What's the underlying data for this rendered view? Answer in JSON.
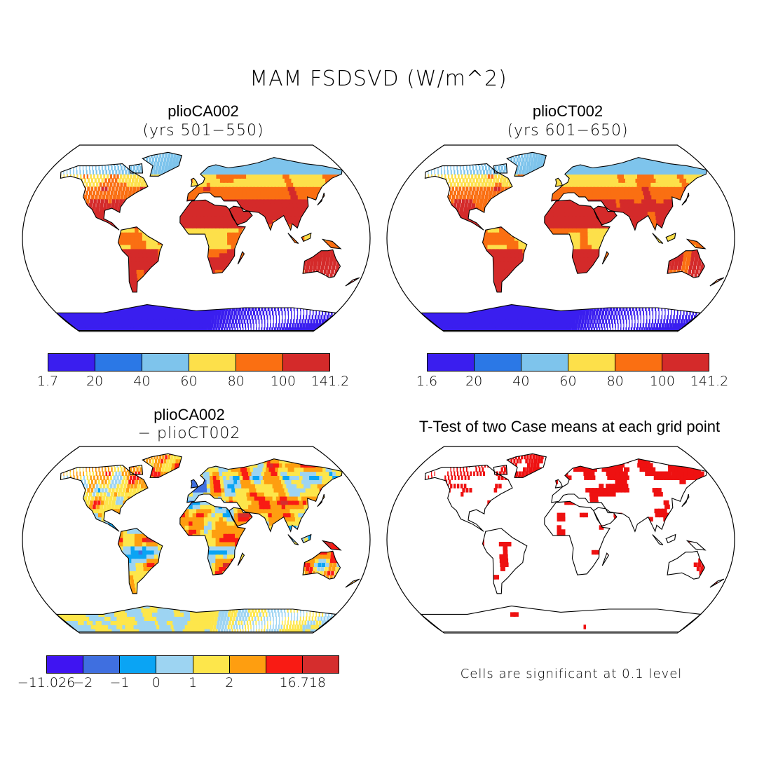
{
  "figure": {
    "title": "MAM FSDSVD (W/m^2)"
  },
  "panels": [
    {
      "title": "plioCA002",
      "subtitle": "(yrs 501−550)",
      "colorbar": {
        "colors": [
          "#3a1eef",
          "#2b78e6",
          "#7ec4ec",
          "#fde04a",
          "#fa6f12",
          "#d42a2a"
        ],
        "tick_labels": [
          "1.7",
          "20",
          "40",
          "60",
          "80",
          "100",
          "141.2"
        ]
      }
    },
    {
      "title": "plioCT002",
      "subtitle": "(yrs 601−650)",
      "colorbar": {
        "colors": [
          "#3a1eef",
          "#2b78e6",
          "#7ec4ec",
          "#fde04a",
          "#fa6f12",
          "#d42a2a"
        ],
        "tick_labels": [
          "1.6",
          "20",
          "40",
          "60",
          "80",
          "100",
          "141.2"
        ]
      }
    },
    {
      "title": "plioCA002",
      "subtitle": "− plioCT002",
      "colorbar": {
        "colors": [
          "#3f14f2",
          "#3f6fe0",
          "#0aa4f4",
          "#9dd4f2",
          "#fde64b",
          "#fe9e10",
          "#f91b14",
          "#d52d2d"
        ],
        "tick_labels": [
          "−11.026",
          "−2",
          "−1",
          "0",
          "1",
          "2",
          "16.718"
        ]
      }
    },
    {
      "title": "T-Test of two Case means at each grid point",
      "note": "Cells are significant at 0.1 level",
      "significant_color": "#ee1111"
    }
  ]
}
